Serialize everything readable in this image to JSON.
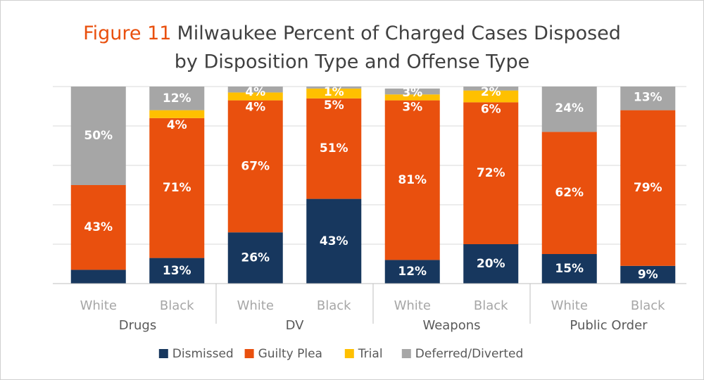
{
  "chart_data": {
    "type": "stacked_bar",
    "title_label": "Figure 11",
    "title": [
      "Milwaukee Percent of Charged Cases Disposed",
      "by Disposition Type and Offense Type"
    ],
    "categories": [
      "White",
      "Black",
      "White",
      "Black",
      "White",
      "Black",
      "White",
      "Black"
    ],
    "groups": [
      "Drugs",
      "DV",
      "Weapons",
      "Public Order"
    ],
    "series": [
      {
        "name": "Dismissed",
        "color": "#17375e",
        "values": [
          7,
          13,
          26,
          43,
          12,
          20,
          15,
          9
        ],
        "value_labels": [
          "7%",
          "13%",
          "26%",
          "43%",
          "12%",
          "20%",
          "15%",
          "9%"
        ]
      },
      {
        "name": "Guilty Plea",
        "color": "#e9500e",
        "values": [
          43,
          71,
          67,
          51,
          81,
          72,
          62,
          79
        ],
        "value_labels": [
          "43%",
          "71%",
          "67%",
          "51%",
          "81%",
          "72%",
          "62%",
          "79%"
        ]
      },
      {
        "name": "Trial",
        "color": "#ffc000",
        "values": [
          null,
          4,
          4,
          5,
          3,
          6,
          null,
          null
        ],
        "value_labels": [
          null,
          "4%",
          "4%",
          "5%",
          "3%",
          "6%",
          null,
          null
        ]
      },
      {
        "name": "Deferred/Diverted",
        "color": "#a6a6a6",
        "values": [
          50,
          12,
          4,
          1,
          3,
          2,
          24,
          13
        ],
        "value_labels": [
          "50%",
          "12%",
          "4%",
          "1%",
          "3%",
          "2%",
          "24%",
          "13%"
        ]
      }
    ],
    "ylim": [
      0,
      100
    ],
    "yticks": [
      0,
      20,
      40,
      60,
      80,
      100
    ],
    "grid": true,
    "legend": "bottom"
  }
}
